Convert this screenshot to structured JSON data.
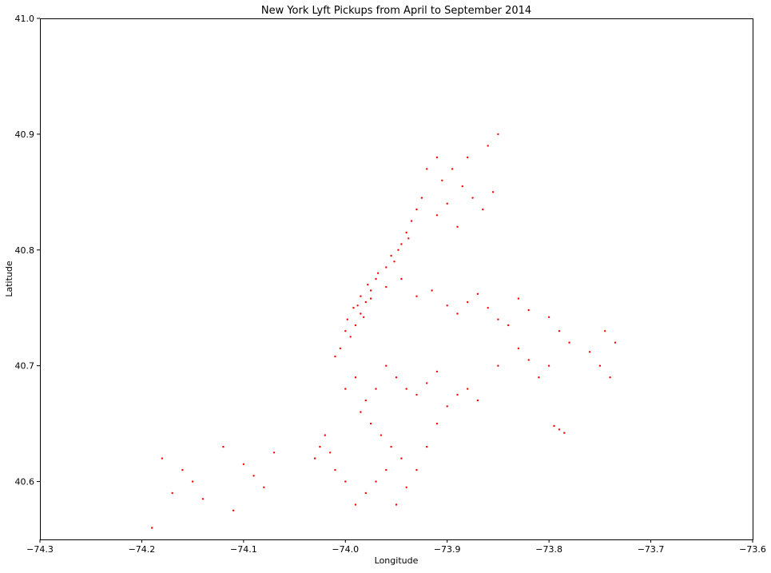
{
  "chart_data": {
    "type": "scatter",
    "title": "New York Lyft Pickups from April to September 2014",
    "xlabel": "Longitude",
    "ylabel": "Latitude",
    "xlim": [
      -74.3,
      -73.6
    ],
    "ylim": [
      40.55,
      41.0
    ],
    "xticks": [
      -74.3,
      -74.2,
      -74.1,
      -74.0,
      -73.9,
      -73.8,
      -73.7,
      -73.6
    ],
    "xtick_labels": [
      "−74.3",
      "−74.2",
      "−74.1",
      "−74.0",
      "−73.9",
      "−73.8",
      "−73.7",
      "−73.6"
    ],
    "yticks": [
      40.6,
      40.7,
      40.8,
      40.9,
      41.0
    ],
    "ytick_labels": [
      "40.6",
      "40.7",
      "40.8",
      "40.9",
      "41.0"
    ],
    "grid": false,
    "marker_color": "#ff0000",
    "series": [
      {
        "points": [
          [
            -73.995,
            40.725
          ],
          [
            -73.99,
            40.735
          ],
          [
            -73.985,
            40.745
          ],
          [
            -73.98,
            40.755
          ],
          [
            -73.975,
            40.765
          ],
          [
            -73.97,
            40.775
          ],
          [
            -73.96,
            40.785
          ],
          [
            -73.955,
            40.795
          ],
          [
            -73.945,
            40.805
          ],
          [
            -73.94,
            40.815
          ],
          [
            -73.935,
            40.825
          ],
          [
            -73.93,
            40.835
          ],
          [
            -73.925,
            40.845
          ],
          [
            -74.005,
            40.715
          ],
          [
            -74.01,
            40.708
          ],
          [
            -73.998,
            40.74
          ],
          [
            -73.992,
            40.75
          ],
          [
            -73.985,
            40.76
          ],
          [
            -73.978,
            40.77
          ],
          [
            -73.968,
            40.78
          ],
          [
            -73.952,
            40.79
          ],
          [
            -73.948,
            40.8
          ],
          [
            -73.938,
            40.81
          ],
          [
            -74.0,
            40.73
          ],
          [
            -73.988,
            40.752
          ],
          [
            -73.975,
            40.758
          ],
          [
            -73.982,
            40.742
          ],
          [
            -73.96,
            40.768
          ],
          [
            -73.945,
            40.775
          ],
          [
            -73.93,
            40.76
          ],
          [
            -73.915,
            40.765
          ],
          [
            -73.9,
            40.752
          ],
          [
            -73.89,
            40.745
          ],
          [
            -73.88,
            40.755
          ],
          [
            -73.87,
            40.762
          ],
          [
            -73.86,
            40.75
          ],
          [
            -73.85,
            40.74
          ],
          [
            -73.84,
            40.735
          ],
          [
            -73.83,
            40.758
          ],
          [
            -73.82,
            40.748
          ],
          [
            -73.8,
            40.742
          ],
          [
            -73.79,
            40.73
          ],
          [
            -73.78,
            40.72
          ],
          [
            -73.76,
            40.712
          ],
          [
            -73.75,
            40.7
          ],
          [
            -73.74,
            40.69
          ],
          [
            -73.735,
            40.72
          ],
          [
            -73.745,
            40.73
          ],
          [
            -73.79,
            40.645
          ],
          [
            -73.785,
            40.642
          ],
          [
            -73.795,
            40.648
          ],
          [
            -73.8,
            40.7
          ],
          [
            -73.81,
            40.69
          ],
          [
            -73.82,
            40.705
          ],
          [
            -73.83,
            40.715
          ],
          [
            -73.85,
            40.7
          ],
          [
            -73.96,
            40.7
          ],
          [
            -73.95,
            40.69
          ],
          [
            -73.94,
            40.68
          ],
          [
            -73.93,
            40.675
          ],
          [
            -73.92,
            40.685
          ],
          [
            -73.91,
            40.695
          ],
          [
            -73.97,
            40.68
          ],
          [
            -73.98,
            40.67
          ],
          [
            -73.99,
            40.69
          ],
          [
            -74.0,
            40.68
          ],
          [
            -73.985,
            40.66
          ],
          [
            -73.975,
            40.65
          ],
          [
            -73.965,
            40.64
          ],
          [
            -73.955,
            40.63
          ],
          [
            -73.945,
            40.62
          ],
          [
            -73.96,
            40.61
          ],
          [
            -73.97,
            40.6
          ],
          [
            -73.98,
            40.59
          ],
          [
            -73.99,
            40.58
          ],
          [
            -73.95,
            40.58
          ],
          [
            -73.94,
            40.595
          ],
          [
            -73.93,
            40.61
          ],
          [
            -73.92,
            40.63
          ],
          [
            -73.91,
            40.65
          ],
          [
            -73.9,
            40.665
          ],
          [
            -73.89,
            40.675
          ],
          [
            -73.88,
            40.68
          ],
          [
            -73.87,
            40.67
          ],
          [
            -74.02,
            40.64
          ],
          [
            -74.03,
            40.62
          ],
          [
            -74.025,
            40.63
          ],
          [
            -74.01,
            40.61
          ],
          [
            -74.0,
            40.6
          ],
          [
            -74.015,
            40.625
          ],
          [
            -73.905,
            40.86
          ],
          [
            -73.895,
            40.87
          ],
          [
            -73.885,
            40.855
          ],
          [
            -73.875,
            40.845
          ],
          [
            -73.865,
            40.835
          ],
          [
            -73.855,
            40.85
          ],
          [
            -73.9,
            40.84
          ],
          [
            -73.91,
            40.83
          ],
          [
            -73.89,
            40.82
          ],
          [
            -73.88,
            40.88
          ],
          [
            -73.86,
            40.89
          ],
          [
            -73.85,
            40.9
          ],
          [
            -73.91,
            40.88
          ],
          [
            -73.92,
            40.87
          ],
          [
            -74.18,
            40.62
          ],
          [
            -74.16,
            40.61
          ],
          [
            -74.15,
            40.6
          ],
          [
            -74.12,
            40.63
          ],
          [
            -74.1,
            40.615
          ],
          [
            -74.09,
            40.605
          ],
          [
            -74.07,
            40.625
          ],
          [
            -74.08,
            40.595
          ],
          [
            -74.14,
            40.585
          ],
          [
            -74.17,
            40.59
          ],
          [
            -74.11,
            40.575
          ],
          [
            -74.19,
            40.56
          ]
        ]
      }
    ]
  }
}
